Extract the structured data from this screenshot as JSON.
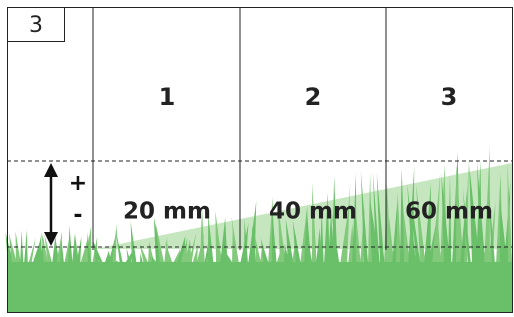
{
  "header_box": "3",
  "columns": [
    {
      "number": "1",
      "height": "20 mm"
    },
    {
      "number": "2",
      "height": "40 mm"
    },
    {
      "number": "3",
      "height": "60 mm"
    }
  ],
  "adjust": {
    "plus": "+",
    "minus": "-"
  }
}
